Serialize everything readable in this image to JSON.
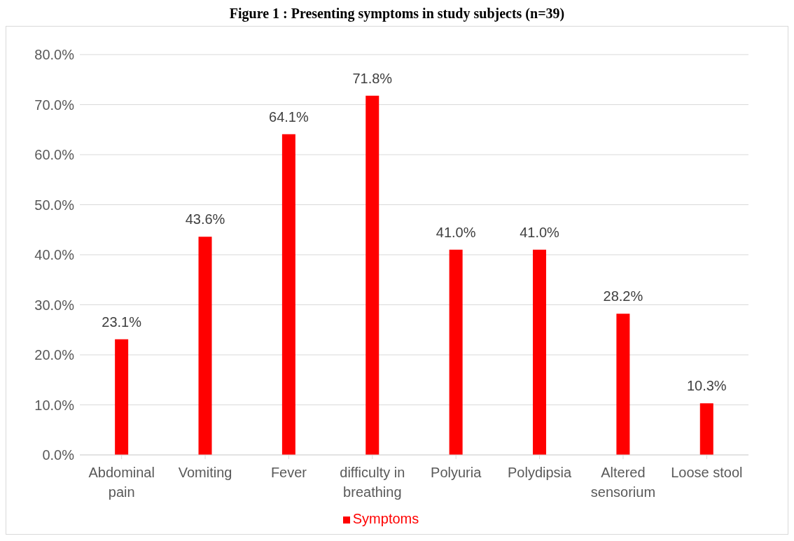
{
  "chart_data": {
    "type": "bar",
    "title": "Figure 1 : Presenting symptoms in study subjects (n=39)",
    "categories": [
      "Abdominal pain",
      "Vomiting",
      "Fever",
      "difficulty in breathing",
      "Polyuria",
      "Polydipsia",
      "Altered sensorium",
      "Loose stool"
    ],
    "series": [
      {
        "name": "Symptoms",
        "color": "#ff0000",
        "values": [
          23.1,
          43.6,
          64.1,
          71.8,
          41.0,
          41.0,
          28.2,
          10.3
        ],
        "value_labels": [
          "23.1%",
          "43.6%",
          "64.1%",
          "71.8%",
          "41.0%",
          "41.0%",
          "28.2%",
          "10.3%"
        ]
      }
    ],
    "ylim": [
      0,
      80
    ],
    "yticks": [
      {
        "value": 0,
        "label": "0.0%"
      },
      {
        "value": 10,
        "label": "10.0%"
      },
      {
        "value": 20,
        "label": "20.0%"
      },
      {
        "value": 30,
        "label": "30.0%"
      },
      {
        "value": 40,
        "label": "40.0%"
      },
      {
        "value": 50,
        "label": "50.0%"
      },
      {
        "value": 60,
        "label": "60.0%"
      },
      {
        "value": 70,
        "label": "70.0%"
      },
      {
        "value": 80,
        "label": "80.0%"
      }
    ],
    "grid": "y",
    "legend": "bottom"
  }
}
